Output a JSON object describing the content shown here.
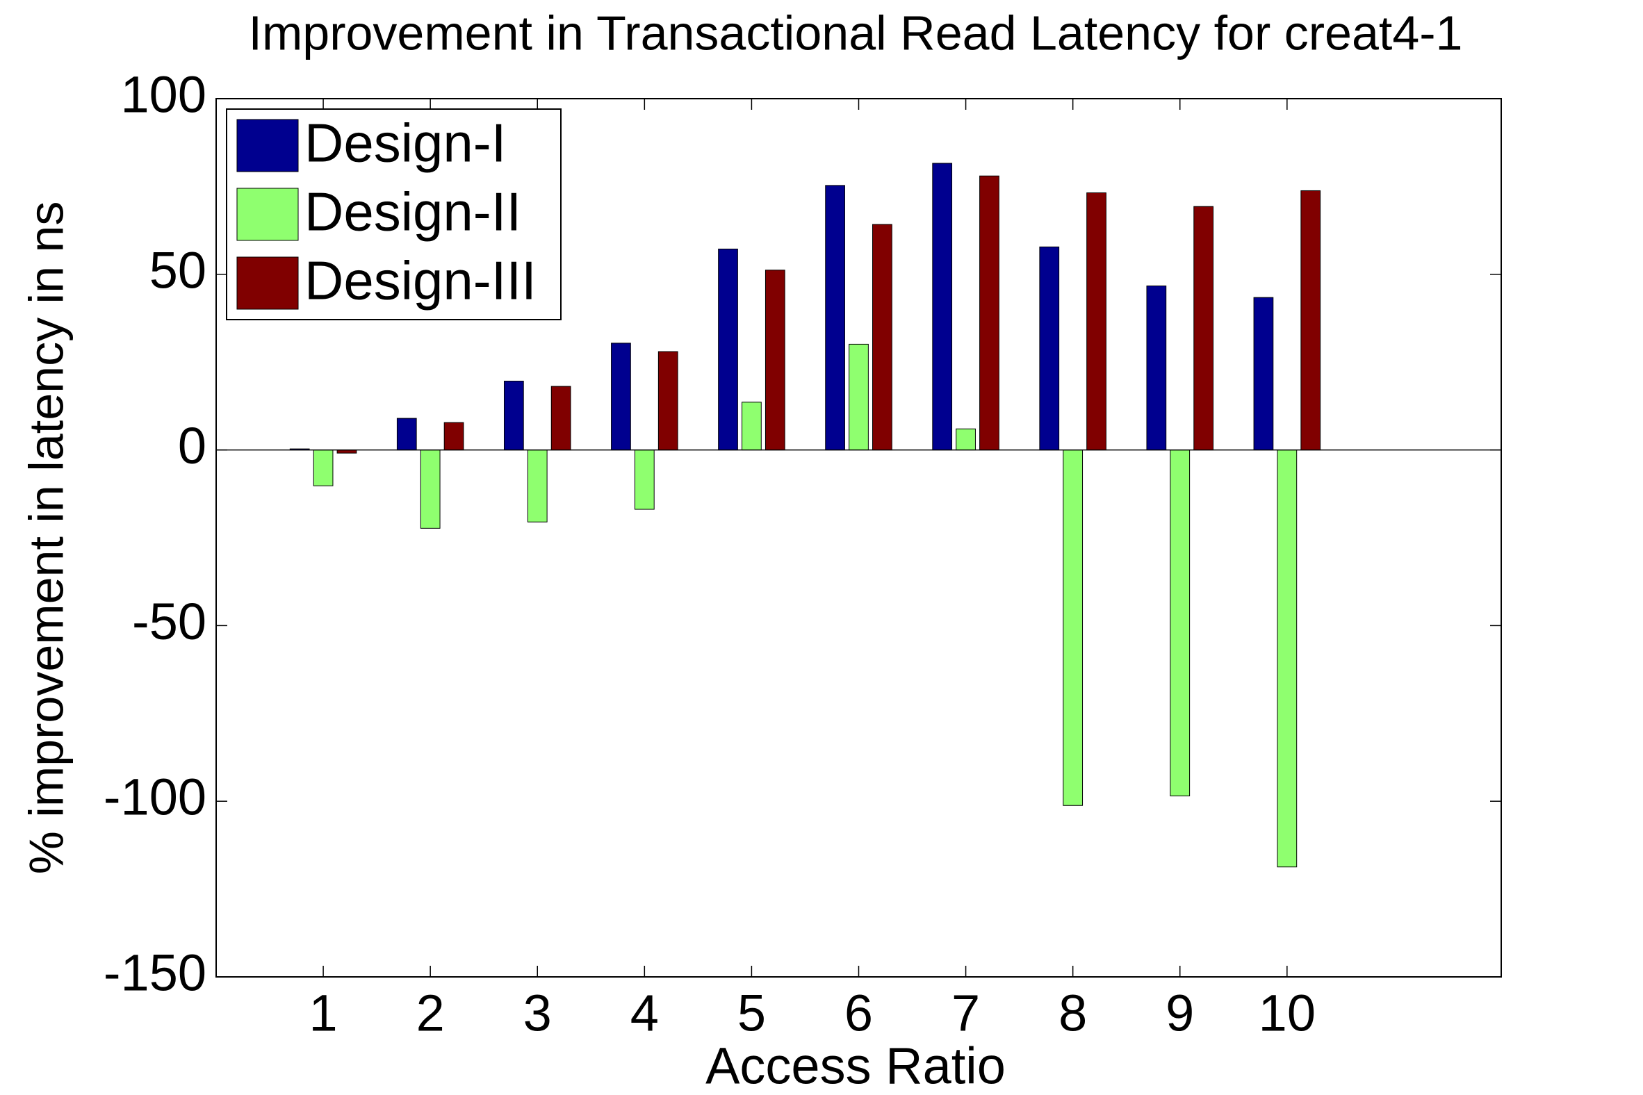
{
  "chart_data": {
    "type": "bar",
    "title": "Improvement in Transactional Read Latency for creat4-1",
    "x_label": "Access Ratio",
    "y_label": "% improvement in latency in ns",
    "x": [
      1,
      2,
      3,
      4,
      5,
      6,
      7,
      8,
      9,
      10
    ],
    "xlim": [
      0,
      12
    ],
    "xticks": [
      1,
      2,
      3,
      4,
      5,
      6,
      7,
      8,
      9,
      10
    ],
    "ylim": [
      -150,
      100
    ],
    "yticks": [
      -150,
      -100,
      -50,
      0,
      50,
      100
    ],
    "grid": false,
    "legend": "upper left",
    "series": [
      {
        "name": "Design-I",
        "color": "#00008f",
        "values": [
          0.3,
          9,
          19.6,
          30.4,
          57.2,
          75.3,
          81.6,
          57.8,
          46.7,
          43.4
        ]
      },
      {
        "name": "Design-II",
        "color": "#8fff6f",
        "values": [
          -10.2,
          -22.3,
          -20.5,
          -16.9,
          13.6,
          30.1,
          6,
          -101.2,
          -98.5,
          -118.7
        ]
      },
      {
        "name": "Design-III",
        "color": "#800000",
        "values": [
          -0.9,
          7.8,
          18.1,
          28,
          51.2,
          64.2,
          78,
          73.2,
          69.3,
          73.8
        ]
      }
    ]
  }
}
